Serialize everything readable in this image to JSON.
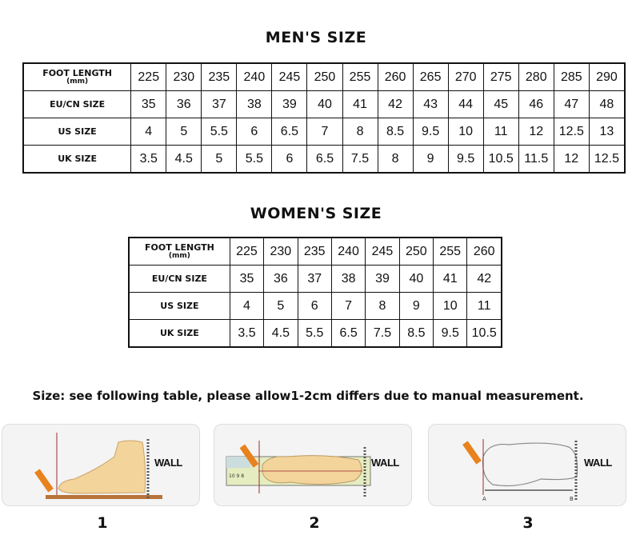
{
  "men": {
    "title": "MEN'S SIZE",
    "rows": [
      {
        "label": "FOOT LENGTH",
        "sublabel": "(mm)",
        "values": [
          "225",
          "230",
          "235",
          "240",
          "245",
          "250",
          "255",
          "260",
          "265",
          "270",
          "275",
          "280",
          "285",
          "290"
        ]
      },
      {
        "label": "EU/CN SIZE",
        "values": [
          "35",
          "36",
          "37",
          "38",
          "39",
          "40",
          "41",
          "42",
          "43",
          "44",
          "45",
          "46",
          "47",
          "48"
        ]
      },
      {
        "label": "US SIZE",
        "values": [
          "4",
          "5",
          "5.5",
          "6",
          "6.5",
          "7",
          "8",
          "8.5",
          "9.5",
          "10",
          "11",
          "12",
          "12.5",
          "13"
        ]
      },
      {
        "label": "UK SIZE",
        "values": [
          "3.5",
          "4.5",
          "5",
          "5.5",
          "6",
          "6.5",
          "7.5",
          "8",
          "9",
          "9.5",
          "10.5",
          "11.5",
          "12",
          "12.5"
        ]
      }
    ]
  },
  "women": {
    "title": "WOMEN'S SIZE",
    "rows": [
      {
        "label": "FOOT LENGTH",
        "sublabel": "(mm)",
        "values": [
          "225",
          "230",
          "235",
          "240",
          "245",
          "250",
          "255",
          "260"
        ]
      },
      {
        "label": "EU/CN SIZE",
        "values": [
          "35",
          "36",
          "37",
          "38",
          "39",
          "40",
          "41",
          "42"
        ]
      },
      {
        "label": "US SIZE",
        "values": [
          "4",
          "5",
          "6",
          "7",
          "8",
          "9",
          "10",
          "11"
        ]
      },
      {
        "label": "UK SIZE",
        "values": [
          "3.5",
          "4.5",
          "5.5",
          "6.5",
          "7.5",
          "8.5",
          "9.5",
          "10.5"
        ]
      }
    ]
  },
  "note": "Size: see following table, please allow1-2cm differs due to manual measurement.",
  "steps": [
    {
      "number": "1",
      "wall": "WALL"
    },
    {
      "number": "2",
      "wall": "WALL",
      "ruler_marks": "10 9 8"
    },
    {
      "number": "3",
      "wall": "WALL",
      "point_a": "A",
      "point_b": "B"
    }
  ],
  "colors": {
    "pencil": "#e8821e",
    "foot": "#f3d49a",
    "line": "#9b2b2b"
  }
}
